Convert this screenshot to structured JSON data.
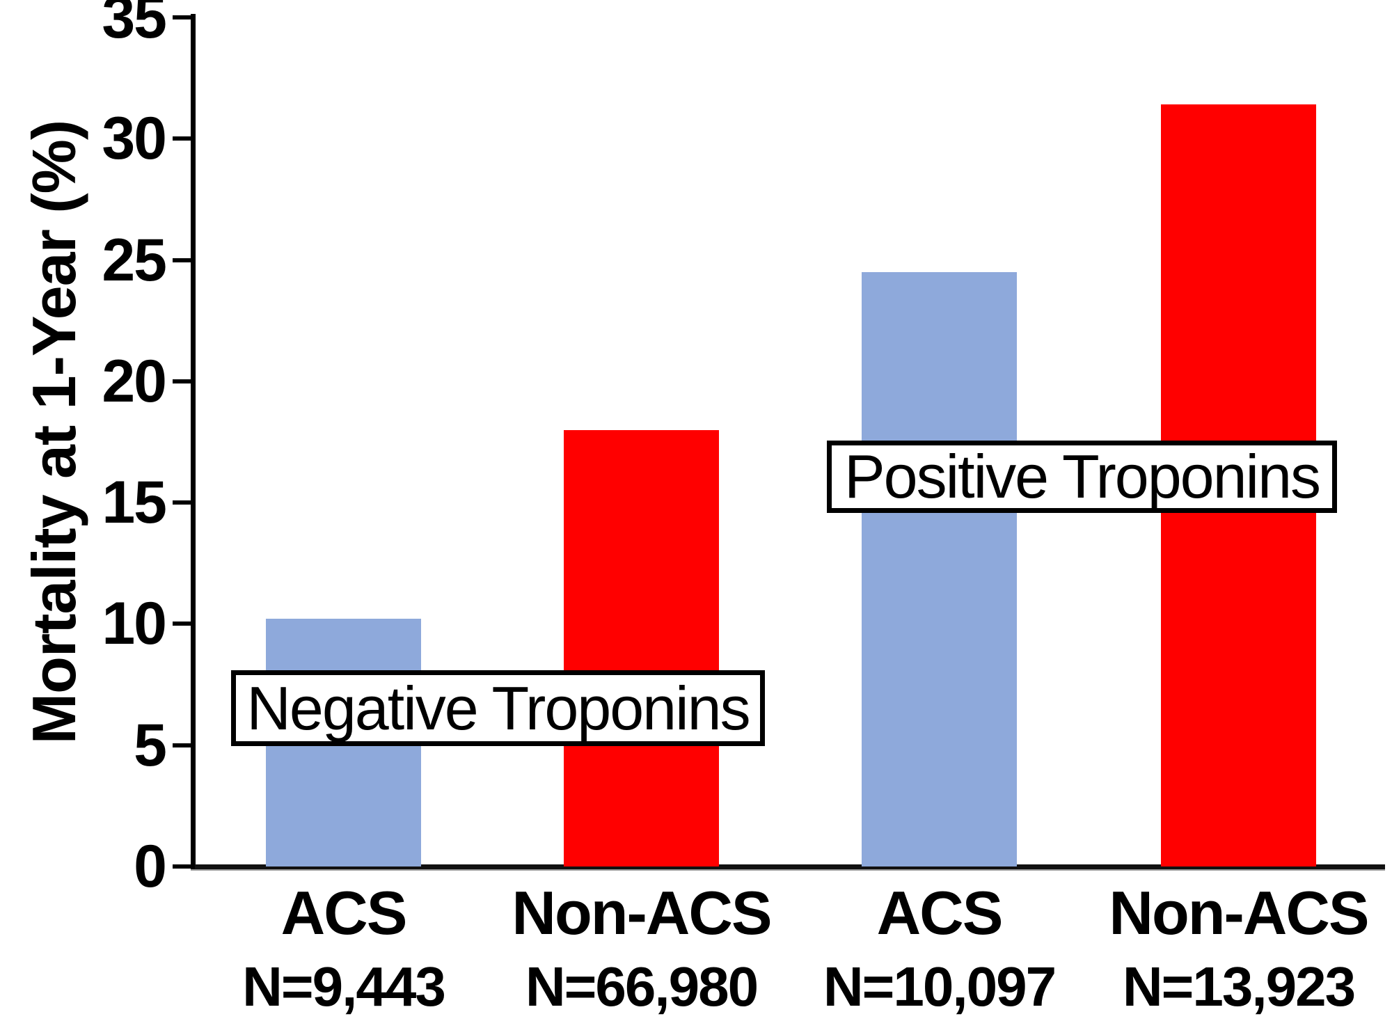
{
  "chart_data": {
    "type": "bar",
    "title": "",
    "ylabel": "Mortality at 1-Year (%)",
    "xlabel": "",
    "ylim": [
      0,
      35
    ],
    "yticks": [
      "0",
      "5",
      "10",
      "15",
      "20",
      "25",
      "30",
      "35"
    ],
    "grid": false,
    "legend": "none",
    "group_labels": [
      "Negative Troponins",
      "Positive Troponins"
    ],
    "categories": [
      "ACS",
      "Non-ACS",
      "ACS",
      "Non-ACS"
    ],
    "bars": [
      {
        "group": "Negative Troponins",
        "category": "ACS",
        "n": "N=9,443",
        "value": 10.2,
        "color": "#8EA9DB"
      },
      {
        "group": "Negative Troponins",
        "category": "Non-ACS",
        "n": "N=66,980",
        "value": 18.0,
        "color": "#FF0000"
      },
      {
        "group": "Positive Troponins",
        "category": "ACS",
        "n": "N=10,097",
        "value": 24.5,
        "color": "#8EA9DB"
      },
      {
        "group": "Positive Troponins",
        "category": "Non-ACS",
        "n": "N=13,923",
        "value": 31.4,
        "color": "#FF0000"
      }
    ],
    "colors": {
      "acs_bar": "#8EA9DB",
      "non_acs_bar": "#FF0000",
      "axis": "#000000",
      "annotation_border": "#000000",
      "annotation_background": "#FFFFFF"
    }
  }
}
